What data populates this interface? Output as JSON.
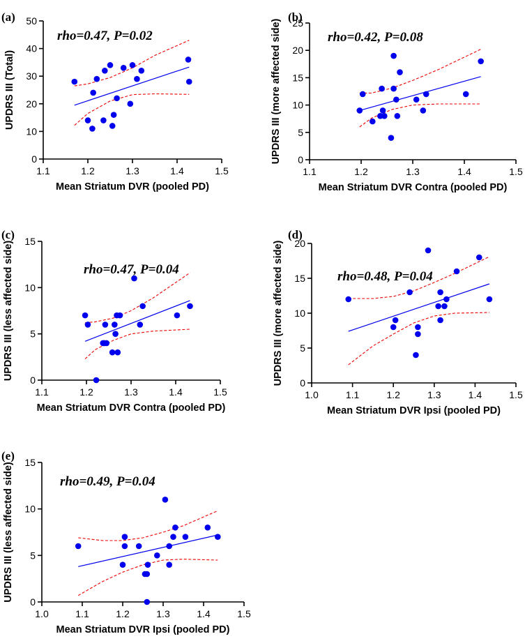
{
  "figure": {
    "colors": {
      "points": "#0000ee",
      "fit": "#0000ee",
      "ci": "#ee0000",
      "axis": "#000000"
    }
  },
  "chart_data": [
    {
      "panel": "(a)",
      "type": "scatter",
      "annotation": "rho=0.47, P=0.02",
      "xlabel": "Mean Striatum DVR (pooled PD)",
      "ylabel": "UPDRS III (Total)",
      "xlim": [
        1.1,
        1.5
      ],
      "ylim": [
        0,
        50
      ],
      "xticks": [
        "1.1",
        "1.2",
        "1.3",
        "1.4",
        "1.5"
      ],
      "yticks": [
        "0",
        "10",
        "20",
        "30",
        "40",
        "50"
      ],
      "x": [
        1.17,
        1.2,
        1.21,
        1.212,
        1.22,
        1.235,
        1.238,
        1.25,
        1.255,
        1.258,
        1.265,
        1.28,
        1.295,
        1.3,
        1.31,
        1.32,
        1.425,
        1.427
      ],
      "y": [
        28,
        14,
        11,
        24,
        29,
        14,
        32,
        34,
        12,
        16,
        22,
        33,
        20,
        34,
        29,
        32,
        36,
        28
      ],
      "fit_x": [
        1.17,
        1.427
      ],
      "fit_y": [
        19.5,
        33.3
      ],
      "ci_upper": [
        [
          1.17,
          26.5
        ],
        [
          1.2,
          27.2
        ],
        [
          1.25,
          29.5
        ],
        [
          1.3,
          33.0
        ],
        [
          1.35,
          37.5
        ],
        [
          1.427,
          43.0
        ]
      ],
      "ci_lower": [
        [
          1.17,
          12.2
        ],
        [
          1.2,
          16.5
        ],
        [
          1.25,
          21.0
        ],
        [
          1.3,
          23.3
        ],
        [
          1.35,
          23.6
        ],
        [
          1.427,
          23.4
        ]
      ]
    },
    {
      "panel": "(b)",
      "type": "scatter",
      "annotation": "rho=0.42, P=0.08",
      "xlabel": "Mean Striatum DVR Contra (pooled PD)",
      "ylabel": "UPDRS III (more affected side)",
      "xlim": [
        1.1,
        1.5
      ],
      "ylim": [
        0,
        25
      ],
      "xticks": [
        "1.1",
        "1.2",
        "1.3",
        "1.4",
        "1.5"
      ],
      "yticks": [
        "0",
        "5",
        "10",
        "15",
        "20",
        "25"
      ],
      "x": [
        1.197,
        1.203,
        1.222,
        1.237,
        1.24,
        1.242,
        1.245,
        1.258,
        1.263,
        1.263,
        1.268,
        1.27,
        1.275,
        1.307,
        1.32,
        1.326,
        1.403,
        1.432
      ],
      "y": [
        9,
        12,
        7,
        8,
        13,
        9,
        8,
        4,
        13,
        19,
        11,
        8,
        16,
        11,
        9,
        12,
        12,
        18
      ],
      "fit_x": [
        1.197,
        1.432
      ],
      "fit_y": [
        9.0,
        15.2
      ],
      "ci_upper": [
        [
          1.197,
          12.2
        ],
        [
          1.22,
          12.2
        ],
        [
          1.26,
          13.1
        ],
        [
          1.3,
          14.5
        ],
        [
          1.35,
          16.5
        ],
        [
          1.432,
          20.2
        ]
      ],
      "ci_lower": [
        [
          1.197,
          6.0
        ],
        [
          1.22,
          7.6
        ],
        [
          1.26,
          9.2
        ],
        [
          1.3,
          10.0
        ],
        [
          1.35,
          10.2
        ],
        [
          1.432,
          10.2
        ]
      ]
    },
    {
      "panel": "(c)",
      "type": "scatter",
      "annotation": "rho=0.47, P=0.04",
      "xlabel": "Mean Striatum DVR Contra (pooled PD)",
      "ylabel": "UPDRS III (less affected side)",
      "xlim": [
        1.1,
        1.5
      ],
      "ylim": [
        0,
        15
      ],
      "xticks": [
        "1.1",
        "1.2",
        "1.3",
        "1.4",
        "1.5"
      ],
      "yticks": [
        "0",
        "5",
        "10",
        "15"
      ],
      "x": [
        1.197,
        1.203,
        1.222,
        1.237,
        1.24,
        1.242,
        1.245,
        1.258,
        1.263,
        1.265,
        1.268,
        1.27,
        1.275,
        1.307,
        1.32,
        1.326,
        1.403,
        1.432
      ],
      "y": [
        7,
        6,
        0,
        4,
        4,
        6,
        4,
        3,
        6,
        5,
        7,
        3,
        7,
        11,
        6,
        8,
        7,
        8
      ],
      "fit_x": [
        1.197,
        1.432
      ],
      "fit_y": [
        4.2,
        8.6
      ],
      "ci_upper": [
        [
          1.197,
          6.2
        ],
        [
          1.22,
          6.3
        ],
        [
          1.26,
          6.7
        ],
        [
          1.3,
          7.5
        ],
        [
          1.35,
          8.9
        ],
        [
          1.432,
          11.6
        ]
      ],
      "ci_lower": [
        [
          1.197,
          2.3
        ],
        [
          1.22,
          3.3
        ],
        [
          1.26,
          4.3
        ],
        [
          1.3,
          5.0
        ],
        [
          1.35,
          5.3
        ],
        [
          1.432,
          5.5
        ]
      ]
    },
    {
      "panel": "(d)",
      "type": "scatter",
      "annotation": "rho=0.48, P=0.04",
      "xlabel": "Mean Striatum DVR Ipsi (pooled PD)",
      "ylabel": "UPDRS III (more affected side)",
      "xlim": [
        1.0,
        1.5
      ],
      "ylim": [
        0,
        20
      ],
      "xticks": [
        "1.0",
        "1.1",
        "1.2",
        "1.3",
        "1.4",
        "1.5"
      ],
      "yticks": [
        "0",
        "5",
        "10",
        "15",
        "20"
      ],
      "x": [
        1.09,
        1.2,
        1.205,
        1.24,
        1.255,
        1.26,
        1.26,
        1.285,
        1.31,
        1.315,
        1.315,
        1.325,
        1.33,
        1.355,
        1.41,
        1.435
      ],
      "y": [
        12,
        8,
        9,
        13,
        4,
        7,
        8,
        19,
        11,
        9,
        13,
        11,
        12,
        16,
        18,
        12
      ],
      "fit_x": [
        1.09,
        1.435
      ],
      "fit_y": [
        7.4,
        14.2
      ],
      "ci_upper": [
        [
          1.09,
          12.1
        ],
        [
          1.15,
          12.1
        ],
        [
          1.2,
          12.4
        ],
        [
          1.25,
          13.2
        ],
        [
          1.3,
          14.4
        ],
        [
          1.35,
          15.7
        ],
        [
          1.435,
          18.1
        ]
      ],
      "ci_lower": [
        [
          1.09,
          2.6
        ],
        [
          1.15,
          5.3
        ],
        [
          1.2,
          7.0
        ],
        [
          1.25,
          8.6
        ],
        [
          1.3,
          9.6
        ],
        [
          1.35,
          10.0
        ],
        [
          1.435,
          10.1
        ]
      ]
    },
    {
      "panel": "(e)",
      "type": "scatter",
      "annotation": "rho=0.49, P=0.04",
      "xlabel": "Mean Striatum DVR Ipsi (pooled PD)",
      "ylabel": "UPDRS III (less affected side)",
      "xlim": [
        1.0,
        1.5
      ],
      "ylim": [
        0,
        15
      ],
      "xticks": [
        "1.0",
        "1.1",
        "1.2",
        "1.3",
        "1.4",
        "1.5"
      ],
      "yticks": [
        "0",
        "5",
        "10",
        "15"
      ],
      "x": [
        1.09,
        1.2,
        1.205,
        1.205,
        1.24,
        1.255,
        1.26,
        1.26,
        1.262,
        1.285,
        1.305,
        1.315,
        1.315,
        1.325,
        1.33,
        1.355,
        1.41,
        1.435
      ],
      "y": [
        6,
        4,
        6,
        7,
        6,
        3,
        0,
        3,
        4,
        5,
        11,
        4,
        6,
        7,
        8,
        7,
        8,
        7
      ],
      "fit_x": [
        1.09,
        1.435
      ],
      "fit_y": [
        3.8,
        7.2
      ],
      "ci_upper": [
        [
          1.09,
          6.9
        ],
        [
          1.15,
          6.6
        ],
        [
          1.2,
          6.6
        ],
        [
          1.25,
          6.9
        ],
        [
          1.3,
          7.5
        ],
        [
          1.35,
          8.2
        ],
        [
          1.435,
          9.8
        ]
      ],
      "ci_lower": [
        [
          1.09,
          0.7
        ],
        [
          1.15,
          2.2
        ],
        [
          1.2,
          3.2
        ],
        [
          1.25,
          4.0
        ],
        [
          1.3,
          4.5
        ],
        [
          1.35,
          4.6
        ],
        [
          1.435,
          4.5
        ]
      ]
    }
  ]
}
